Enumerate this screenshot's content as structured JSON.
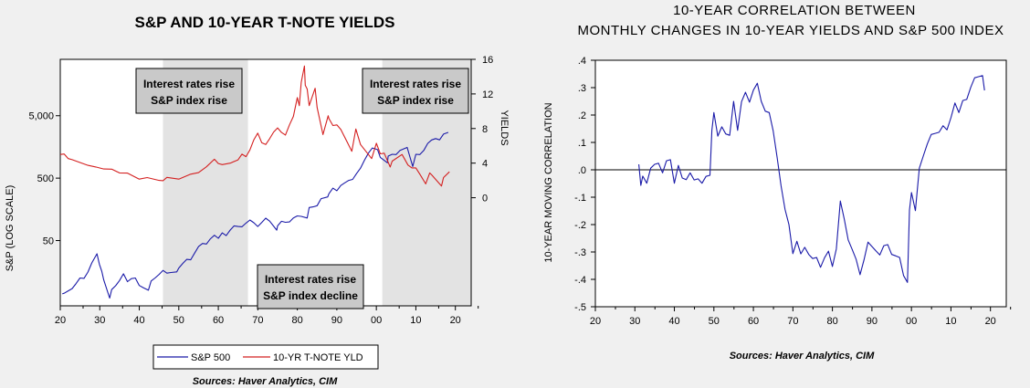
{
  "left_chart": {
    "title": "S&P AND 10-YEAR T-NOTE YIELDS",
    "ylabel_left": "S&P (LOG SCALE)",
    "ylabel_right": "YIELDS",
    "source": "Sources: Haver Analytics, CIM",
    "annotations": [
      {
        "line1": "Interest rates rise",
        "line2": "S&P index rise"
      },
      {
        "line1": "Interest rates rise",
        "line2": "S&P index rise"
      },
      {
        "line1": "Interest rates rise",
        "line2": "S&P index decline"
      }
    ],
    "legend": [
      "S&P 500",
      "10-YR T-NOTE YLD"
    ],
    "colors": {
      "sp500": "#1a1aa8",
      "yield": "#d42020",
      "shade": "#e3e3e3"
    }
  },
  "right_chart": {
    "title_line1": "10-YEAR CORRELATION BETWEEN",
    "title_line2": "MONTHLY CHANGES IN 10-YEAR YIELDS AND S&P 500 INDEX",
    "ylabel": "10-YEAR MOVING CORRELATION",
    "source": "Sources: Haver Analytics, CIM",
    "colors": {
      "line": "#1a1aa8"
    }
  },
  "chart_data": [
    {
      "type": "line",
      "title": "S&P AND 10-YEAR T-NOTE YIELDS",
      "xlabel": "",
      "x_ticks": [
        "20",
        "30",
        "40",
        "50",
        "60",
        "70",
        "80",
        "90",
        "00",
        "10",
        "20"
      ],
      "xlim": [
        1920,
        2024
      ],
      "left_axis": {
        "label": "S&P (LOG SCALE)",
        "scale": "log",
        "ticks": [
          "50",
          "500",
          "5,000"
        ],
        "ylim": [
          4.5,
          40000
        ]
      },
      "right_axis": {
        "label": "YIELDS",
        "ticks": [
          "0",
          "4",
          "8",
          "12",
          "16"
        ],
        "ylim": [
          -12.5,
          16
        ]
      },
      "shaded_periods": [
        [
          1946,
          1967.5
        ],
        [
          2001.5,
          2024
        ]
      ],
      "series": [
        {
          "name": "S&P 500",
          "axis": "left",
          "x": [
            1920.5,
            1921,
            1922,
            1923,
            1924,
            1925,
            1926,
            1927,
            1928,
            1929.3,
            1929.9,
            1930.5,
            1931,
            1932.5,
            1933,
            1934,
            1935,
            1936,
            1937,
            1938,
            1939,
            1940,
            1941,
            1942.3,
            1943,
            1944,
            1945,
            1946,
            1947,
            1948,
            1949.5,
            1950,
            1951,
            1952,
            1953,
            1954,
            1955,
            1956,
            1957,
            1958,
            1959,
            1960,
            1961,
            1962,
            1963,
            1964,
            1965,
            1966,
            1967,
            1968,
            1969,
            1970,
            1971,
            1972,
            1973,
            1974.8,
            1975,
            1976,
            1977,
            1978,
            1979,
            1980,
            1981,
            1982.5,
            1983,
            1984,
            1985,
            1986,
            1987.7,
            1988,
            1989,
            1990,
            1991,
            1992,
            1993,
            1994,
            1995,
            1996,
            1997,
            1998,
            1999,
            2000.3,
            2001,
            2002.8,
            2003,
            2004,
            2005,
            2006,
            2007.8,
            2009.2,
            2010,
            2011,
            2012,
            2013,
            2014,
            2015,
            2016,
            2017,
            2018.2
          ],
          "values": [
            7,
            7.5,
            8,
            8.5,
            10,
            12,
            13,
            16,
            22,
            30,
            20,
            17,
            12,
            6,
            8,
            9,
            12,
            15,
            11,
            12,
            12,
            10,
            9,
            8,
            11,
            12,
            15,
            17,
            15,
            15,
            15,
            19,
            22,
            25,
            24,
            30,
            42,
            46,
            44,
            52,
            58,
            57,
            68,
            60,
            72,
            82,
            88,
            85,
            95,
            104,
            92,
            88,
            100,
            114,
            100,
            70,
            90,
            104,
            98,
            97,
            110,
            130,
            125,
            115,
            165,
            165,
            190,
            240,
            250,
            275,
            330,
            330,
            390,
            420,
            450,
            455,
            620,
            740,
            970,
            1230,
            1450,
            1500,
            1100,
            880,
            1100,
            1150,
            1250,
            1420,
            1550,
            750,
            1150,
            1250,
            1420,
            1800,
            2000,
            2050,
            2150,
            2600,
            2700
          ]
        },
        {
          "name": "10-YR T-NOTE YLD",
          "axis": "right",
          "x": [
            1920,
            1921,
            1922,
            1923,
            1925,
            1927,
            1929,
            1931,
            1933,
            1935,
            1937,
            1940,
            1942,
            1945,
            1946,
            1947,
            1950,
            1953,
            1955,
            1957,
            1959,
            1960,
            1961,
            1963,
            1965,
            1966,
            1967,
            1968,
            1969,
            1970,
            1971,
            1972,
            1973,
            1974,
            1975,
            1976,
            1977,
            1978,
            1979,
            1980,
            1980.5,
            1981,
            1981.8,
            1982,
            1982.5,
            1983,
            1984.5,
            1985,
            1986.5,
            1987.8,
            1988,
            1989,
            1990,
            1991,
            1993.8,
            1994.8,
            1996,
            1998.8,
            2000,
            2001,
            2002,
            2003.5,
            2004,
            2006.5,
            2008,
            2009,
            2010,
            2011,
            2012.5,
            2013.5,
            2014,
            2016.5,
            2017,
            2018.5
          ],
          "values": [
            5.0,
            5.2,
            4.6,
            4.4,
            4.0,
            3.6,
            3.7,
            3.4,
            3.3,
            2.8,
            2.7,
            2.3,
            2.4,
            2.0,
            1.9,
            2.2,
            2.3,
            2.8,
            2.9,
            3.5,
            4.3,
            4.1,
            3.9,
            4.0,
            4.3,
            4.9,
            4.9,
            5.6,
            6.7,
            7.4,
            6.2,
            6.3,
            6.9,
            7.6,
            8.0,
            7.4,
            7.4,
            8.5,
            9.4,
            11.5,
            10.5,
            13.5,
            15.3,
            13.0,
            12.5,
            10.5,
            12.8,
            10.5,
            7.3,
            9.4,
            9.0,
            8.5,
            8.5,
            7.9,
            5.3,
            7.8,
            6.3,
            4.6,
            6.3,
            5.0,
            5.0,
            3.7,
            4.3,
            5.0,
            3.7,
            3.3,
            3.6,
            2.8,
            1.6,
            2.8,
            2.5,
            1.5,
            2.4,
            3.0
          ]
        }
      ]
    },
    {
      "type": "line",
      "title": "10-YEAR CORRELATION BETWEEN MONTHLY CHANGES IN 10-YEAR YIELDS AND S&P 500 INDEX",
      "xlabel": "",
      "ylabel": "10-YEAR MOVING CORRELATION",
      "x_ticks": [
        "20",
        "30",
        "40",
        "50",
        "60",
        "70",
        "80",
        "90",
        "00",
        "10",
        "20"
      ],
      "y_ticks": [
        ".4",
        ".3",
        ".2",
        ".1",
        ".0",
        "-.1",
        "-.2",
        "-.3",
        "-.4",
        "-.5"
      ],
      "xlim": [
        1920,
        2024
      ],
      "ylim": [
        -0.5,
        0.4
      ],
      "zero_line": true,
      "series": [
        {
          "name": "",
          "x": [
            1931,
            1931.5,
            1932,
            1933,
            1934,
            1935,
            1936,
            1937,
            1938,
            1939,
            1940,
            1941,
            1942,
            1943,
            1944,
            1945,
            1946,
            1947,
            1948,
            1949,
            1949.5,
            1950,
            1951,
            1952,
            1953,
            1954,
            1955,
            1956,
            1957,
            1958,
            1959,
            1960,
            1961,
            1962,
            1963,
            1964,
            1965,
            1966,
            1967,
            1968,
            1969,
            1970,
            1971,
            1972,
            1973,
            1974,
            1975,
            1976,
            1977,
            1978,
            1979,
            1980,
            1981,
            1982,
            1983,
            1984,
            1985,
            1986,
            1987,
            1988,
            1989,
            1990,
            1991,
            1992,
            1993,
            1994,
            1995,
            1996,
            1997,
            1998,
            1999,
            1999.5,
            2000,
            2001,
            2002,
            2003,
            2004,
            2005,
            2006,
            2007,
            2008,
            2009,
            2010,
            2011,
            2012,
            2013,
            2014,
            2015,
            2016,
            2017,
            2018,
            2018.5
          ],
          "values": [
            0.02,
            -0.06,
            -0.02,
            -0.04,
            0.0,
            0.02,
            0.03,
            -0.02,
            0.03,
            0.04,
            -0.04,
            0.01,
            -0.03,
            -0.03,
            -0.02,
            -0.04,
            -0.03,
            -0.04,
            -0.03,
            -0.02,
            0.15,
            0.2,
            0.12,
            0.16,
            0.14,
            0.12,
            0.25,
            0.15,
            0.24,
            0.28,
            0.25,
            0.3,
            0.31,
            0.25,
            0.22,
            0.2,
            0.14,
            0.05,
            -0.05,
            -0.15,
            -0.2,
            -0.3,
            -0.27,
            -0.31,
            -0.28,
            -0.3,
            -0.33,
            -0.32,
            -0.35,
            -0.33,
            -0.3,
            -0.35,
            -0.28,
            -0.12,
            -0.18,
            -0.25,
            -0.3,
            -0.33,
            -0.38,
            -0.32,
            -0.27,
            -0.28,
            -0.29,
            -0.32,
            -0.28,
            -0.27,
            -0.3,
            -0.32,
            -0.32,
            -0.38,
            -0.42,
            -0.15,
            -0.08,
            -0.14,
            0.0,
            0.05,
            0.1,
            0.12,
            0.13,
            0.14,
            0.17,
            0.14,
            0.19,
            0.25,
            0.2,
            0.25,
            0.26,
            0.31,
            0.33,
            0.34,
            0.35,
            0.29
          ]
        }
      ]
    }
  ]
}
